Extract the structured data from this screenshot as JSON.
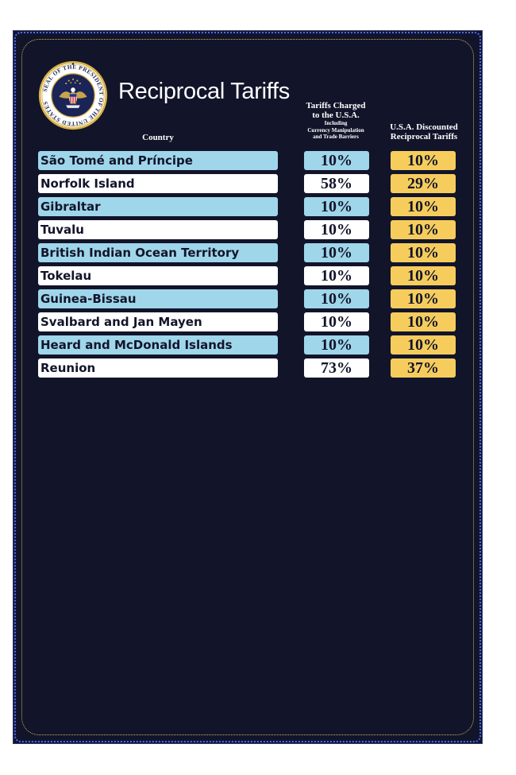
{
  "title": "Reciprocal Tariffs",
  "seal": {
    "name": "seal-of-the-president",
    "ring_text": "SEAL OF THE PRESIDENT OF THE UNITED STATES",
    "colors": {
      "gold": "#d7b24a",
      "navy": "#1a2456",
      "white": "#ffffff"
    }
  },
  "headers": {
    "country": "Country",
    "charged_line1": "Tariffs Charged",
    "charged_line2": "to the U.S.A.",
    "charged_sub1": "Including",
    "charged_sub2": "Currency Manipulation",
    "charged_sub3": "and Trade Barriers",
    "discounted_line1": "U.S.A. Discounted",
    "discounted_line2": "Reciprocal Tariffs"
  },
  "colors": {
    "background": "#12142a",
    "row_blue": "#9fd6ea",
    "row_white": "#ffffff",
    "discount_yellow": "#f6cd5d",
    "text_dark": "#12142a"
  },
  "rows": [
    {
      "country": "São Tomé and Príncipe",
      "charged": "10%",
      "discounted": "10%"
    },
    {
      "country": "Norfolk Island",
      "charged": "58%",
      "discounted": "29%"
    },
    {
      "country": "Gibraltar",
      "charged": "10%",
      "discounted": "10%"
    },
    {
      "country": "Tuvalu",
      "charged": "10%",
      "discounted": "10%"
    },
    {
      "country": "British Indian Ocean Territory",
      "charged": "10%",
      "discounted": "10%"
    },
    {
      "country": "Tokelau",
      "charged": "10%",
      "discounted": "10%"
    },
    {
      "country": "Guinea-Bissau",
      "charged": "10%",
      "discounted": "10%"
    },
    {
      "country": "Svalbard and Jan Mayen",
      "charged": "10%",
      "discounted": "10%"
    },
    {
      "country": "Heard and McDonald Islands",
      "charged": "10%",
      "discounted": "10%"
    },
    {
      "country": "Reunion",
      "charged": "73%",
      "discounted": "37%"
    }
  ]
}
